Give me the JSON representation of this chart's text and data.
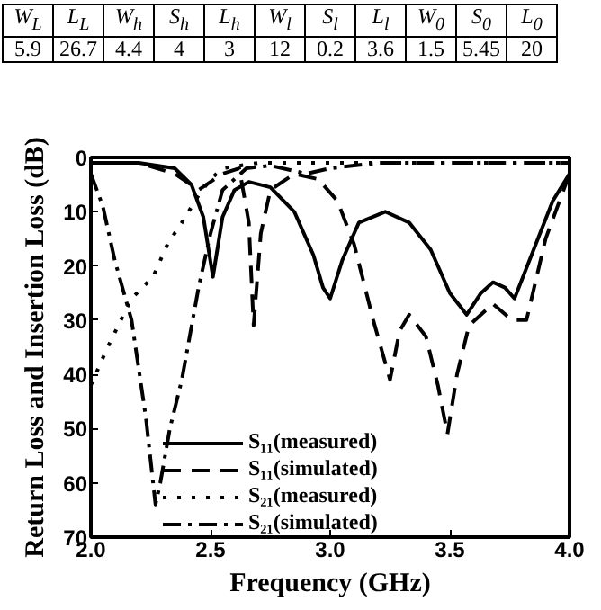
{
  "chart_data": {
    "type": "line",
    "xlabel": "Frequency (GHz)",
    "ylabel": "Return Loss and Insertion Loss (dB)",
    "xlim": [
      2.0,
      4.0
    ],
    "xticks": [
      {
        "value": 2.0,
        "label": "2.0"
      },
      {
        "value": 2.5,
        "label": "2.5"
      },
      {
        "value": 3.0,
        "label": "3.0"
      },
      {
        "value": 3.5,
        "label": "3.5"
      },
      {
        "value": 4.0,
        "label": "4.0"
      }
    ],
    "ylim": [
      70,
      0
    ],
    "yticks": [
      0,
      10,
      20,
      30,
      40,
      50,
      60,
      70
    ],
    "grid": false,
    "legend": "bottom",
    "marker": "none",
    "annotations": [
      "W$_{L}$",
      "L$_{L}$",
      "W$_{h}$",
      "S$_{h}$",
      "L$_{h}$",
      "W$_{l}$",
      "S$_{l}$",
      "L$_{l}$",
      "W$_{0}$",
      "S$_{0}$",
      "L$_{0}$",
      "5.9",
      "26.7",
      "4.4",
      "4",
      "3",
      "12",
      "0.2",
      "3.6",
      "1.5",
      "5.45",
      "20"
    ],
    "series": [
      {
        "name": "S₁₁(measured)",
        "color": "#000000",
        "line_style": "solid",
        "x": [
          2.0,
          2.2,
          2.35,
          2.42,
          2.47,
          2.51,
          2.55,
          2.6,
          2.66,
          2.75,
          2.85,
          2.93,
          2.97,
          3.0,
          3.05,
          3.12,
          3.23,
          3.33,
          3.42,
          3.5,
          3.57,
          3.63,
          3.68,
          3.73,
          3.77,
          3.85,
          3.93,
          4.0
        ],
        "values": [
          1,
          1,
          2,
          5,
          11,
          22,
          11,
          6,
          4.5,
          5.5,
          10,
          18,
          24,
          26,
          19,
          12,
          10,
          12,
          17,
          25,
          29,
          25,
          23,
          24,
          26,
          17,
          8,
          3
        ]
      },
      {
        "name": "S₁₁(simulated)",
        "color": "#000000",
        "line_style": "dashed",
        "x": [
          2.0,
          2.2,
          2.35,
          2.45,
          2.55,
          2.62,
          2.66,
          2.68,
          2.71,
          2.75,
          2.85,
          2.95,
          3.03,
          3.1,
          3.18,
          3.25,
          3.29,
          3.33,
          3.4,
          3.45,
          3.49,
          3.53,
          3.58,
          3.68,
          3.76,
          3.82,
          3.9,
          4.0
        ],
        "values": [
          1,
          1,
          3,
          6,
          3,
          2,
          12,
          31,
          14,
          6,
          3,
          4,
          8,
          16,
          30,
          41,
          32,
          29,
          33,
          42,
          51,
          40,
          31,
          27,
          30,
          30,
          15,
          3
        ]
      },
      {
        "name": "S₂₁(measured)",
        "color": "#000000",
        "line_style": "dotted",
        "x": [
          2.0,
          2.07,
          2.17,
          2.26,
          2.32,
          2.38,
          2.45,
          2.5,
          2.55,
          2.7,
          3.0,
          3.5,
          4.0
        ],
        "values": [
          42,
          35,
          26,
          22,
          16,
          12,
          7,
          4,
          2,
          1,
          1,
          1,
          1
        ]
      },
      {
        "name": "S₂₁(simulated)",
        "color": "#000000",
        "line_style": "dashdot",
        "x": [
          2.0,
          2.05,
          2.1,
          2.17,
          2.23,
          2.27,
          2.29,
          2.33,
          2.38,
          2.45,
          2.5,
          2.55,
          2.65,
          2.75,
          2.9,
          3.0,
          3.2,
          3.5,
          4.0
        ],
        "values": [
          3,
          9,
          19,
          30,
          48,
          64,
          60,
          50,
          41,
          24,
          14,
          6,
          2,
          1.5,
          3,
          2,
          1,
          1,
          1
        ]
      }
    ]
  }
}
